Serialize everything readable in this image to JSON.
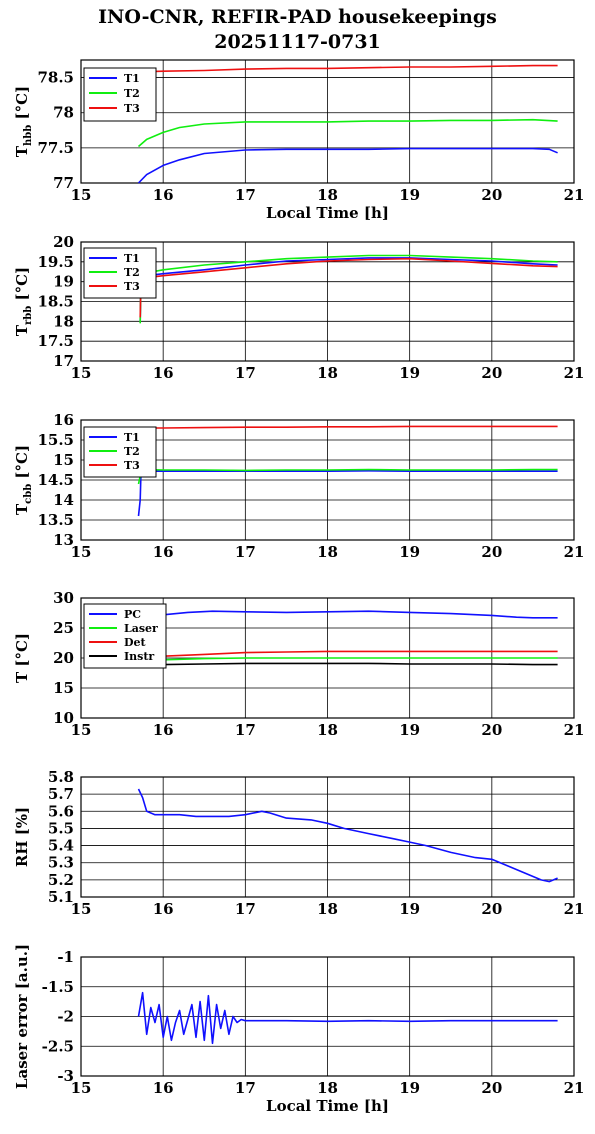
{
  "header": {
    "title": "INO-CNR, REFIR-PAD housekeepings",
    "subtitle": "20251117-0731"
  },
  "colors": {
    "blue": "#1010ff",
    "green": "#10ee10",
    "red": "#ee1010",
    "black": "#000000",
    "grid": "#000000"
  },
  "chart_data": [
    {
      "type": "line",
      "ylabel_main": "T",
      "ylabel_sub": "hbb",
      "ylabel_unit": " [°C]",
      "xlabel": "Local Time [h]",
      "xlim": [
        15,
        21
      ],
      "ylim": [
        77,
        78.75
      ],
      "xticks": [
        "15",
        "16",
        "17",
        "18",
        "19",
        "20",
        "21"
      ],
      "yticks": [
        "77",
        "77.5",
        "78",
        "78.5"
      ],
      "grid": true,
      "legend": "top-left",
      "series": [
        {
          "name": "T1",
          "color": "#1010ff",
          "x": [
            15.7,
            15.8,
            16.0,
            16.2,
            16.5,
            17.0,
            17.5,
            18.0,
            18.5,
            19.0,
            19.5,
            20.0,
            20.5,
            20.7,
            20.8
          ],
          "y": [
            77.0,
            77.12,
            77.25,
            77.33,
            77.42,
            77.47,
            77.48,
            77.48,
            77.48,
            77.49,
            77.49,
            77.49,
            77.49,
            77.48,
            77.43
          ]
        },
        {
          "name": "T2",
          "color": "#10ee10",
          "x": [
            15.7,
            15.8,
            16.0,
            16.2,
            16.5,
            17.0,
            17.5,
            18.0,
            18.5,
            19.0,
            19.5,
            20.0,
            20.5,
            20.8
          ],
          "y": [
            77.52,
            77.62,
            77.72,
            77.79,
            77.84,
            77.87,
            77.87,
            77.87,
            77.88,
            77.88,
            77.89,
            77.89,
            77.9,
            77.88
          ]
        },
        {
          "name": "T3",
          "color": "#ee1010",
          "x": [
            15.7,
            16.0,
            16.5,
            17.0,
            17.5,
            18.0,
            18.5,
            19.0,
            19.5,
            20.0,
            20.5,
            20.8
          ],
          "y": [
            78.58,
            78.59,
            78.6,
            78.62,
            78.63,
            78.63,
            78.64,
            78.65,
            78.65,
            78.66,
            78.67,
            78.67
          ]
        }
      ]
    },
    {
      "type": "line",
      "ylabel_main": "T",
      "ylabel_sub": "rbb",
      "ylabel_unit": " [°C]",
      "xlabel": "",
      "xlim": [
        15,
        21
      ],
      "ylim": [
        17,
        20
      ],
      "xticks": [
        "15",
        "16",
        "17",
        "18",
        "19",
        "20",
        "21"
      ],
      "yticks": [
        "17",
        "17.5",
        "18",
        "18.5",
        "19",
        "19.5",
        "20"
      ],
      "grid": true,
      "legend": "top-left",
      "series": [
        {
          "name": "T1",
          "color": "#1010ff",
          "x": [
            15.72,
            15.73,
            15.8,
            16.0,
            16.5,
            17.0,
            17.5,
            18.0,
            18.5,
            19.0,
            19.5,
            20.0,
            20.5,
            20.8
          ],
          "y": [
            18.0,
            19.1,
            19.15,
            19.2,
            19.3,
            19.42,
            19.52,
            19.56,
            19.6,
            19.6,
            19.56,
            19.52,
            19.45,
            19.42
          ]
        },
        {
          "name": "T2",
          "color": "#10ee10",
          "x": [
            15.72,
            15.73,
            15.8,
            16.0,
            16.5,
            17.0,
            17.5,
            18.0,
            18.5,
            19.0,
            19.5,
            20.0,
            20.5,
            20.8
          ],
          "y": [
            17.95,
            19.15,
            19.22,
            19.3,
            19.42,
            19.5,
            19.58,
            19.62,
            19.66,
            19.66,
            19.62,
            19.58,
            19.52,
            19.5
          ]
        },
        {
          "name": "T3",
          "color": "#ee1010",
          "x": [
            15.72,
            15.73,
            15.8,
            16.0,
            16.5,
            17.0,
            17.5,
            18.0,
            18.5,
            19.0,
            19.5,
            20.0,
            20.5,
            20.8
          ],
          "y": [
            18.1,
            19.05,
            19.1,
            19.15,
            19.25,
            19.35,
            19.45,
            19.52,
            19.56,
            19.58,
            19.52,
            19.46,
            19.4,
            19.38
          ]
        }
      ]
    },
    {
      "type": "line",
      "ylabel_main": "T",
      "ylabel_sub": "cbb",
      "ylabel_unit": " [°C]",
      "xlabel": "",
      "xlim": [
        15,
        21
      ],
      "ylim": [
        13,
        16
      ],
      "xticks": [
        "15",
        "16",
        "17",
        "18",
        "19",
        "20",
        "21"
      ],
      "yticks": [
        "13",
        "13.5",
        "14",
        "14.5",
        "15",
        "15.5",
        "16"
      ],
      "grid": true,
      "legend": "top-left",
      "series": [
        {
          "name": "T1",
          "color": "#1010ff",
          "x": [
            15.7,
            15.72,
            15.73,
            15.8,
            16.0,
            16.5,
            17.0,
            17.5,
            18.0,
            18.5,
            19.0,
            19.5,
            20.0,
            20.5,
            20.8
          ],
          "y": [
            13.6,
            14.0,
            14.7,
            14.72,
            14.72,
            14.72,
            14.72,
            14.72,
            14.72,
            14.73,
            14.72,
            14.72,
            14.72,
            14.72,
            14.72
          ]
        },
        {
          "name": "T2",
          "color": "#10ee10",
          "x": [
            15.7,
            15.72,
            15.73,
            15.8,
            16.0,
            16.5,
            17.0,
            17.5,
            18.0,
            18.5,
            19.0,
            19.5,
            20.0,
            20.5,
            20.8
          ],
          "y": [
            14.4,
            14.6,
            14.75,
            14.76,
            14.75,
            14.75,
            14.74,
            14.75,
            14.75,
            14.76,
            14.75,
            14.75,
            14.75,
            14.76,
            14.76
          ]
        },
        {
          "name": "T3",
          "color": "#ee1010",
          "x": [
            15.7,
            16.0,
            16.5,
            17.0,
            17.5,
            18.0,
            18.5,
            19.0,
            19.5,
            20.0,
            20.5,
            20.8
          ],
          "y": [
            15.8,
            15.8,
            15.81,
            15.82,
            15.82,
            15.83,
            15.83,
            15.84,
            15.84,
            15.84,
            15.84,
            15.84
          ]
        }
      ]
    },
    {
      "type": "line",
      "ylabel_main": "T [°C]",
      "ylabel_sub": "",
      "ylabel_unit": "",
      "xlabel": "",
      "xlim": [
        15,
        21
      ],
      "ylim": [
        10,
        30
      ],
      "xticks": [
        "15",
        "16",
        "17",
        "18",
        "19",
        "20",
        "21"
      ],
      "yticks": [
        "10",
        "15",
        "20",
        "25",
        "30"
      ],
      "grid": true,
      "legend": "top-left",
      "series": [
        {
          "name": "PC",
          "color": "#1010ff",
          "x": [
            15.7,
            16.0,
            16.3,
            16.6,
            17.0,
            17.5,
            18.0,
            18.5,
            19.0,
            19.5,
            20.0,
            20.3,
            20.5,
            20.8
          ],
          "y": [
            26.0,
            27.2,
            27.6,
            27.8,
            27.7,
            27.6,
            27.7,
            27.8,
            27.6,
            27.4,
            27.1,
            26.8,
            26.7,
            26.7
          ]
        },
        {
          "name": "Laser",
          "color": "#10ee10",
          "x": [
            15.7,
            16.0,
            16.5,
            17.0,
            17.5,
            18.0,
            18.5,
            19.0,
            19.5,
            20.0,
            20.5,
            20.8
          ],
          "y": [
            19.5,
            19.7,
            19.9,
            20.0,
            20.0,
            20.0,
            20.0,
            20.0,
            20.0,
            20.0,
            20.0,
            20.0
          ]
        },
        {
          "name": "Det",
          "color": "#ee1010",
          "x": [
            15.7,
            16.0,
            16.5,
            17.0,
            17.5,
            18.0,
            18.5,
            19.0,
            19.5,
            20.0,
            20.5,
            20.8
          ],
          "y": [
            19.8,
            20.3,
            20.6,
            20.9,
            21.0,
            21.1,
            21.1,
            21.1,
            21.1,
            21.1,
            21.1,
            21.1
          ]
        },
        {
          "name": "Instr",
          "color": "#000000",
          "x": [
            15.7,
            16.0,
            16.5,
            17.0,
            17.5,
            18.0,
            18.5,
            19.0,
            19.5,
            20.0,
            20.5,
            20.8
          ],
          "y": [
            18.7,
            18.9,
            19.0,
            19.1,
            19.1,
            19.1,
            19.1,
            19.0,
            19.0,
            19.0,
            18.9,
            18.9
          ]
        }
      ]
    },
    {
      "type": "line",
      "ylabel_main": "RH [%]",
      "ylabel_sub": "",
      "ylabel_unit": "",
      "xlabel": "",
      "xlim": [
        15,
        21
      ],
      "ylim": [
        5.1,
        5.8
      ],
      "xticks": [
        "15",
        "16",
        "17",
        "18",
        "19",
        "20",
        "21"
      ],
      "yticks": [
        "5.1",
        "5.2",
        "5.3",
        "5.4",
        "5.5",
        "5.6",
        "5.7",
        "5.8"
      ],
      "grid": true,
      "legend": "none",
      "series": [
        {
          "name": "",
          "color": "#1010ff",
          "x": [
            15.7,
            15.75,
            15.8,
            15.9,
            16.0,
            16.2,
            16.4,
            16.6,
            16.8,
            17.0,
            17.2,
            17.3,
            17.5,
            17.8,
            18.0,
            18.2,
            18.5,
            18.8,
            19.0,
            19.2,
            19.5,
            19.8,
            20.0,
            20.2,
            20.4,
            20.6,
            20.7,
            20.8
          ],
          "y": [
            5.73,
            5.68,
            5.6,
            5.58,
            5.58,
            5.58,
            5.57,
            5.57,
            5.57,
            5.58,
            5.6,
            5.59,
            5.56,
            5.55,
            5.53,
            5.5,
            5.47,
            5.44,
            5.42,
            5.4,
            5.36,
            5.33,
            5.32,
            5.28,
            5.24,
            5.2,
            5.19,
            5.21
          ]
        }
      ]
    },
    {
      "type": "line",
      "ylabel_main": "Laser error [a.u.]",
      "ylabel_sub": "",
      "ylabel_unit": "",
      "xlabel": "Local Time [h]",
      "xlim": [
        15,
        21
      ],
      "ylim": [
        -3,
        -1
      ],
      "xticks": [
        "15",
        "16",
        "17",
        "18",
        "19",
        "20",
        "21"
      ],
      "yticks": [
        "-3",
        "-2.5",
        "-2",
        "-1.5",
        "-1"
      ],
      "grid": true,
      "legend": "none",
      "series": [
        {
          "name": "",
          "color": "#1010ff",
          "x": [
            15.7,
            15.75,
            15.8,
            15.85,
            15.9,
            15.95,
            16.0,
            16.05,
            16.1,
            16.15,
            16.2,
            16.25,
            16.3,
            16.35,
            16.4,
            16.45,
            16.5,
            16.55,
            16.6,
            16.65,
            16.7,
            16.75,
            16.8,
            16.85,
            16.9,
            16.95,
            17.0,
            17.5,
            18.0,
            18.5,
            19.0,
            19.5,
            20.0,
            20.5,
            20.8
          ],
          "y": [
            -2.0,
            -1.6,
            -2.3,
            -1.85,
            -2.1,
            -1.8,
            -2.35,
            -2.0,
            -2.4,
            -2.1,
            -1.9,
            -2.3,
            -2.05,
            -1.8,
            -2.35,
            -1.75,
            -2.4,
            -1.65,
            -2.45,
            -1.8,
            -2.2,
            -1.9,
            -2.3,
            -2.0,
            -2.1,
            -2.05,
            -2.07,
            -2.07,
            -2.08,
            -2.07,
            -2.08,
            -2.07,
            -2.07,
            -2.07,
            -2.07
          ]
        }
      ]
    }
  ]
}
